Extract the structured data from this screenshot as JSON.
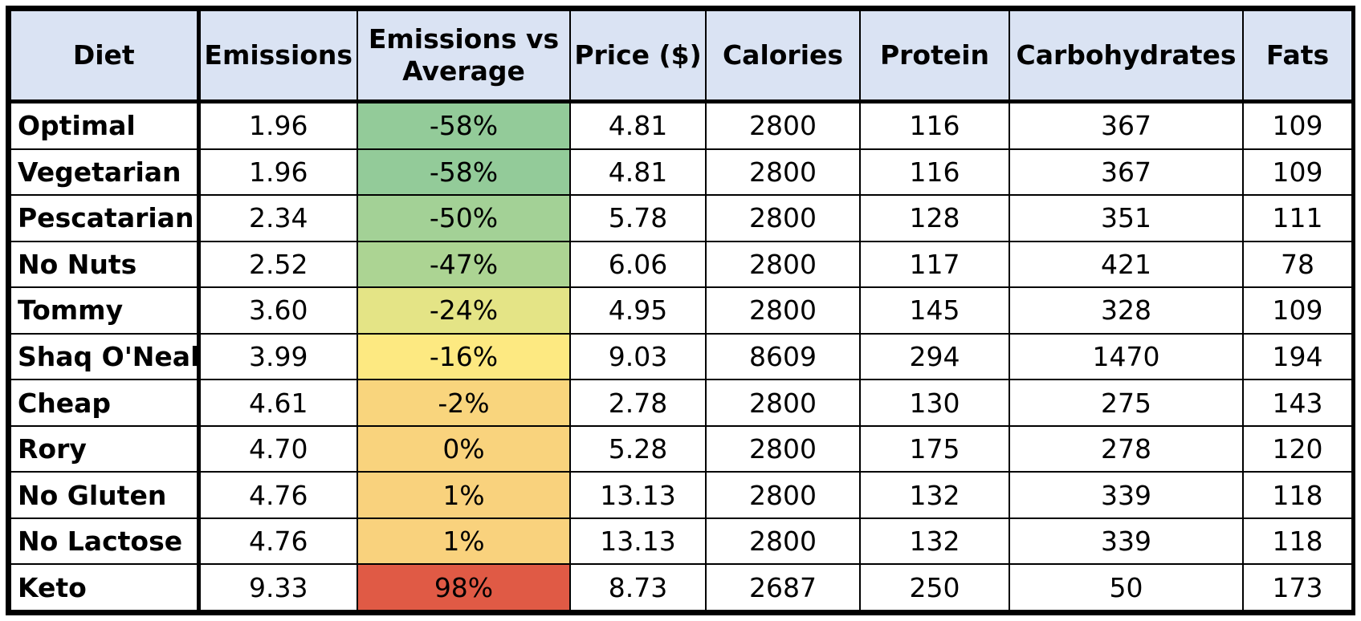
{
  "chart_data": {
    "type": "table",
    "columns": [
      "Diet",
      "Emissions",
      "Emissions vs Average",
      "Price ($)",
      "Calories",
      "Protein",
      "Carbohydrates",
      "Fats"
    ],
    "rows": [
      {
        "diet": "Optimal",
        "emissions": "1.96",
        "vs_average": "-58%",
        "price": "4.81",
        "calories": "2800",
        "protein": "116",
        "carbohydrates": "367",
        "fats": "109",
        "vs_average_pct": -58,
        "vs_color": "#93cb99"
      },
      {
        "diet": "Vegetarian",
        "emissions": "1.96",
        "vs_average": "-58%",
        "price": "4.81",
        "calories": "2800",
        "protein": "116",
        "carbohydrates": "367",
        "fats": "109",
        "vs_average_pct": -58,
        "vs_color": "#93cb99"
      },
      {
        "diet": "Pescatarian",
        "emissions": "2.34",
        "vs_average": "-50%",
        "price": "5.78",
        "calories": "2800",
        "protein": "128",
        "carbohydrates": "351",
        "fats": "111",
        "vs_average_pct": -50,
        "vs_color": "#a3d196"
      },
      {
        "diet": "No Nuts",
        "emissions": "2.52",
        "vs_average": "-47%",
        "price": "6.06",
        "calories": "2800",
        "protein": "117",
        "carbohydrates": "421",
        "fats": "78",
        "vs_average_pct": -47,
        "vs_color": "#acd493"
      },
      {
        "diet": "Tommy",
        "emissions": "3.60",
        "vs_average": "-24%",
        "price": "4.95",
        "calories": "2800",
        "protein": "145",
        "carbohydrates": "328",
        "fats": "109",
        "vs_average_pct": -24,
        "vs_color": "#e4e486"
      },
      {
        "diet": "Shaq O'Neal",
        "emissions": "3.99",
        "vs_average": "-16%",
        "price": "9.03",
        "calories": "8609",
        "protein": "294",
        "carbohydrates": "1470",
        "fats": "194",
        "vs_average_pct": -16,
        "vs_color": "#fde981"
      },
      {
        "diet": "Cheap",
        "emissions": "4.61",
        "vs_average": "-2%",
        "price": "2.78",
        "calories": "2800",
        "protein": "130",
        "carbohydrates": "275",
        "fats": "143",
        "vs_average_pct": -2,
        "vs_color": "#f9d57d"
      },
      {
        "diet": "Rory",
        "emissions": "4.70",
        "vs_average": "0%",
        "price": "5.28",
        "calories": "2800",
        "protein": "175",
        "carbohydrates": "278",
        "fats": "120",
        "vs_average_pct": 0,
        "vs_color": "#f9d37d"
      },
      {
        "diet": "No Gluten",
        "emissions": "4.76",
        "vs_average": "1%",
        "price": "13.13",
        "calories": "2800",
        "protein": "132",
        "carbohydrates": "339",
        "fats": "118",
        "vs_average_pct": 1,
        "vs_color": "#f9d27d"
      },
      {
        "diet": "No Lactose",
        "emissions": "4.76",
        "vs_average": "1%",
        "price": "13.13",
        "calories": "2800",
        "protein": "132",
        "carbohydrates": "339",
        "fats": "118",
        "vs_average_pct": 1,
        "vs_color": "#f9d27d"
      },
      {
        "diet": "Keto",
        "emissions": "9.33",
        "vs_average": "98%",
        "price": "8.73",
        "calories": "2687",
        "protein": "250",
        "carbohydrates": "50",
        "fats": "173",
        "vs_average_pct": 98,
        "vs_color": "#e05a45"
      }
    ]
  }
}
